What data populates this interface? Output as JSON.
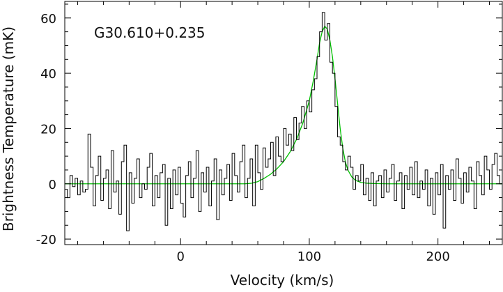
{
  "chart_data": {
    "type": "line",
    "title": "",
    "annotation": "G30.610+0.235",
    "xlabel": "Velocity (km/s)",
    "ylabel": "Brightness Temperature (mK)",
    "xlim": [
      -90,
      250
    ],
    "ylim": [
      -22,
      66
    ],
    "x_ticks": [
      0,
      100,
      200
    ],
    "y_ticks": [
      -20,
      0,
      20,
      40,
      60
    ],
    "grid": false,
    "legend": "none",
    "colors": {
      "observed": "#000000",
      "fit": "#00c000",
      "axes": "#000000"
    },
    "series": [
      {
        "style": "step",
        "x": [
          -89,
          -87,
          -85,
          -83,
          -81,
          -79,
          -77,
          -75,
          -73,
          -71,
          -69,
          -67,
          -65,
          -63,
          -61,
          -59,
          -57,
          -55,
          -53,
          -51,
          -49,
          -47,
          -45,
          -43,
          -41,
          -39,
          -37,
          -35,
          -33,
          -31,
          -29,
          -27,
          -25,
          -23,
          -21,
          -19,
          -17,
          -15,
          -13,
          -11,
          -9,
          -7,
          -5,
          -3,
          -1,
          1,
          3,
          5,
          7,
          9,
          11,
          13,
          15,
          17,
          19,
          21,
          23,
          25,
          27,
          29,
          31,
          33,
          35,
          37,
          39,
          41,
          43,
          45,
          47,
          49,
          51,
          53,
          55,
          57,
          59,
          61,
          63,
          65,
          67,
          69,
          71,
          73,
          75,
          77,
          79,
          81,
          83,
          85,
          87,
          89,
          91,
          93,
          95,
          97,
          99,
          101,
          103,
          105,
          107,
          109,
          111,
          113,
          115,
          117,
          119,
          121,
          123,
          125,
          127,
          129,
          131,
          133,
          135,
          137,
          139,
          141,
          143,
          145,
          147,
          149,
          151,
          153,
          155,
          157,
          159,
          161,
          163,
          165,
          167,
          169,
          171,
          173,
          175,
          177,
          179,
          181,
          183,
          185,
          187,
          189,
          191,
          193,
          195,
          197,
          199,
          201,
          203,
          205,
          207,
          209,
          211,
          213,
          215,
          217,
          219,
          221,
          223,
          225,
          227,
          229,
          231,
          233,
          235,
          237,
          239,
          241,
          243,
          245,
          247,
          249
        ],
        "values": [
          -2,
          -5,
          3,
          -1,
          2,
          -4,
          1,
          -3,
          -2,
          18,
          6,
          -8,
          3,
          10,
          -6,
          2,
          5,
          -9,
          12,
          -3,
          1,
          -11,
          8,
          14,
          -17,
          4,
          -7,
          2,
          9,
          -5,
          0,
          -2,
          6,
          11,
          -8,
          3,
          -5,
          4,
          7,
          -15,
          2,
          -9,
          5,
          -4,
          6,
          -7,
          -12,
          3,
          8,
          -5,
          2,
          12,
          -10,
          4,
          -3,
          6,
          -8,
          1,
          9,
          -13,
          5,
          -4,
          2,
          7,
          -6,
          11,
          3,
          -3,
          8,
          14,
          -5,
          2,
          9,
          -8,
          14,
          4,
          -2,
          13,
          6,
          9,
          15,
          3,
          17,
          10,
          8,
          20,
          14,
          18,
          12,
          24,
          16,
          22,
          28,
          20,
          30,
          26,
          34,
          38,
          46,
          55,
          62,
          52,
          58,
          44,
          40,
          28,
          17,
          14,
          8,
          5,
          10,
          6,
          -2,
          3,
          1,
          7,
          -4,
          2,
          -6,
          4,
          -8,
          1,
          3,
          -5,
          5,
          -3,
          2,
          7,
          -6,
          1,
          4,
          -9,
          3,
          -2,
          6,
          -4,
          8,
          -5,
          1,
          -2,
          5,
          -8,
          2,
          -11,
          4,
          -4,
          7,
          -16,
          3,
          -2,
          5,
          -6,
          9,
          2,
          -7,
          4,
          -3,
          6,
          1,
          -9,
          8,
          3,
          -4,
          10,
          5,
          -2,
          7,
          11,
          3,
          0
        ]
      },
      {
        "style": "line",
        "x": [
          -90,
          50,
          55,
          60,
          65,
          70,
          75,
          80,
          85,
          90,
          95,
          100,
          103,
          106,
          108,
          110,
          112,
          114,
          116,
          118,
          120,
          122,
          124,
          126,
          128,
          130,
          133,
          136,
          140,
          145,
          150,
          160,
          250
        ],
        "values": [
          0,
          0,
          0.2,
          0.8,
          2,
          3.5,
          5.5,
          8,
          11.5,
          16,
          22,
          30,
          37,
          45,
          51,
          55,
          57,
          56,
          52,
          46,
          38,
          29,
          20,
          13,
          8,
          5,
          2.5,
          1.2,
          0.5,
          0.2,
          0.1,
          0,
          0
        ]
      }
    ]
  }
}
